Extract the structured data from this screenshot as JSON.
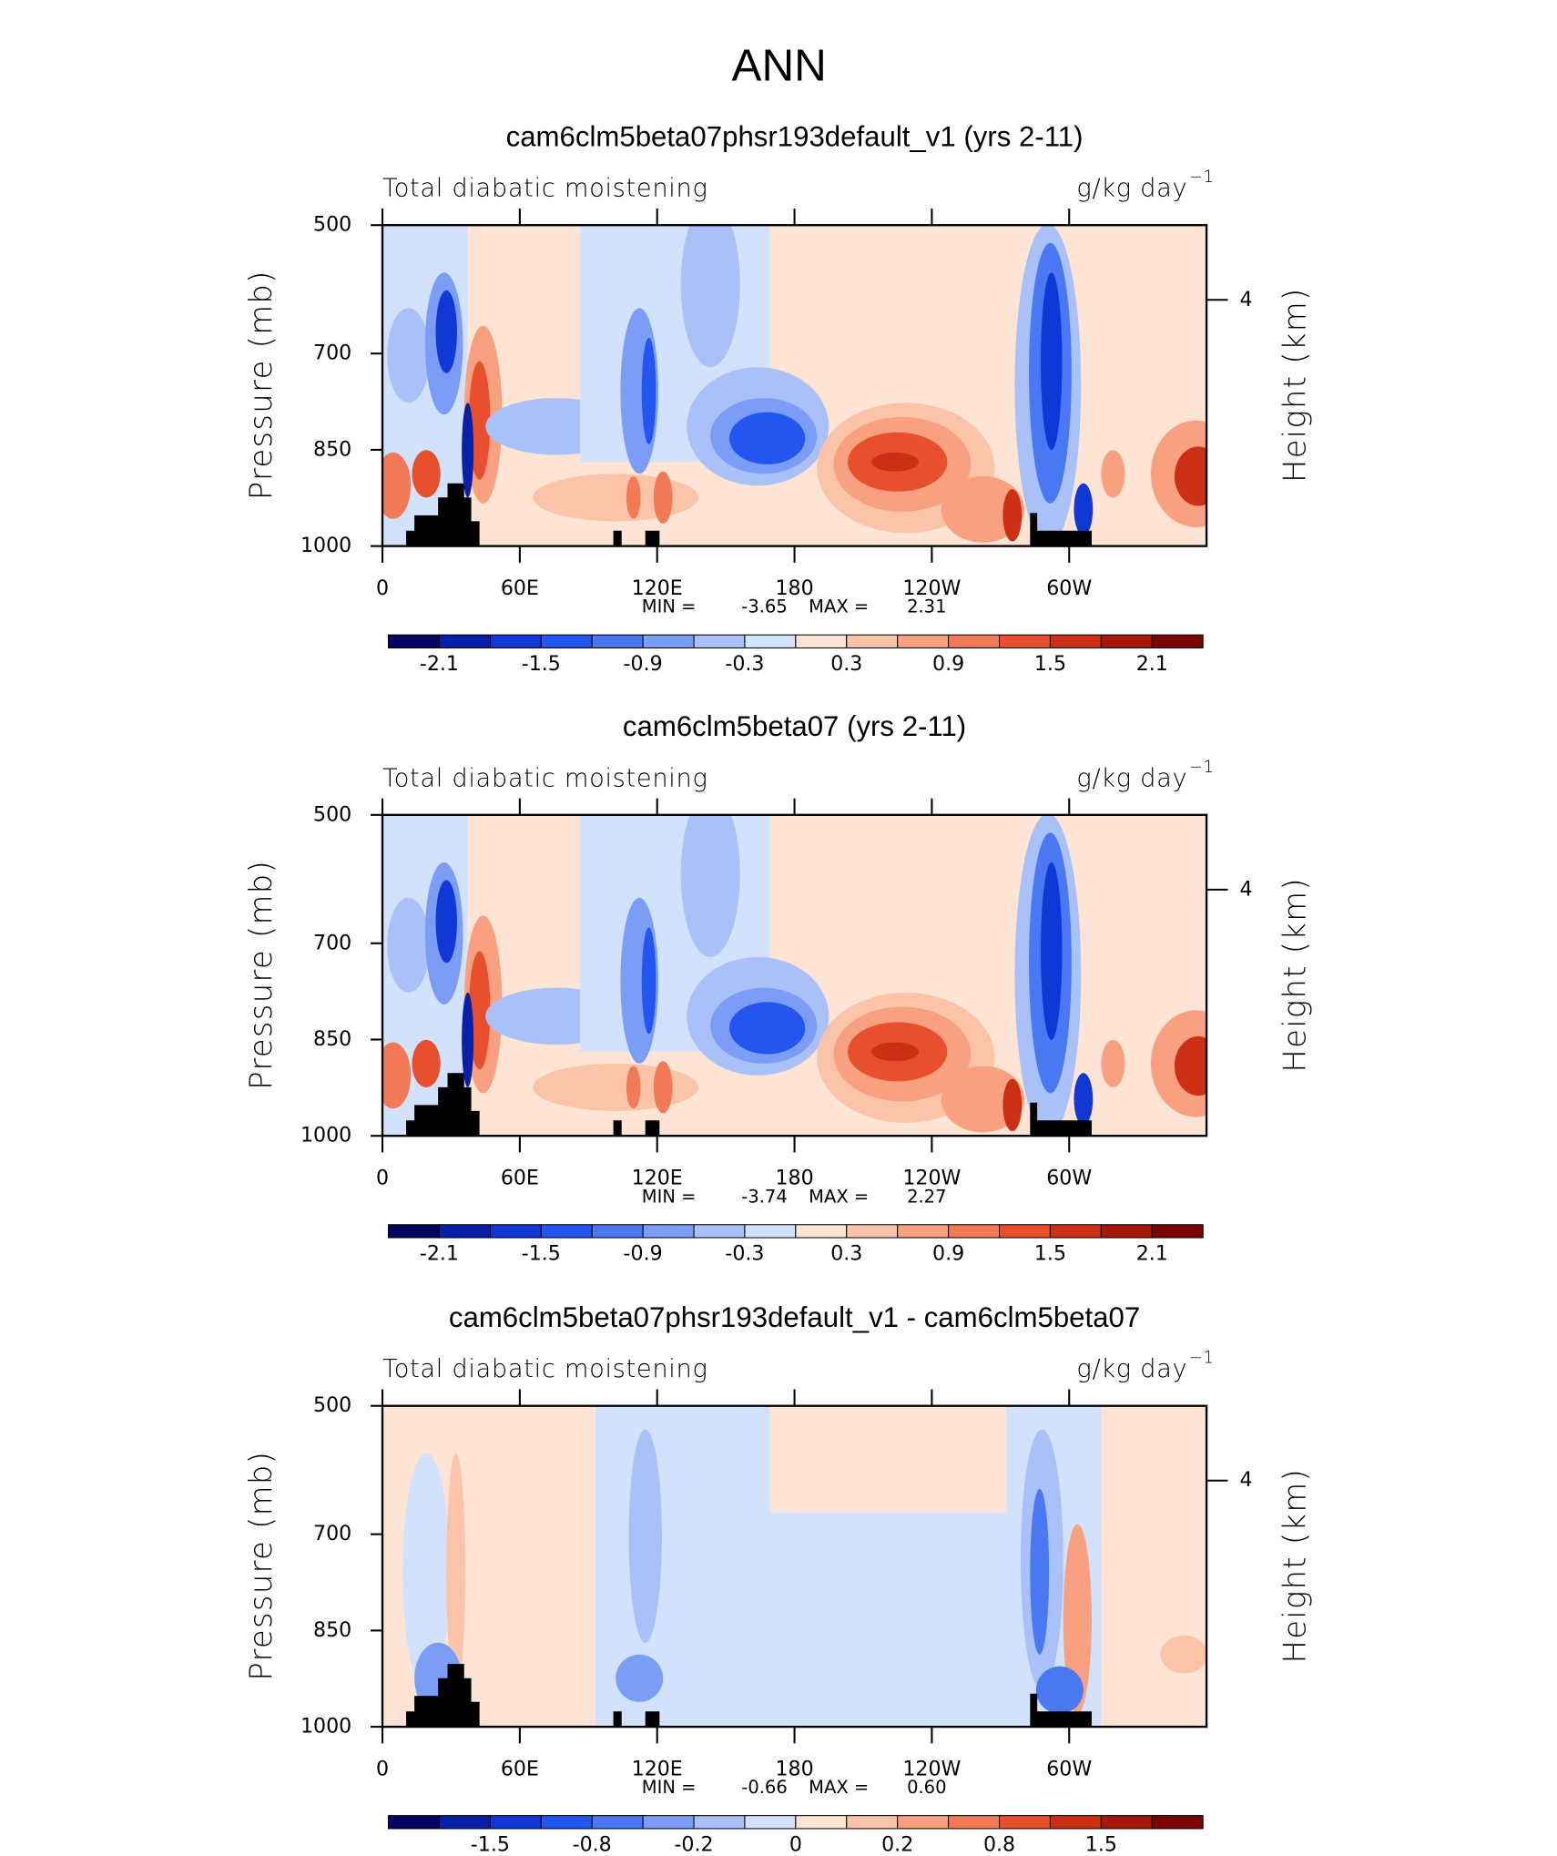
{
  "suptitle": "ANN",
  "chart_data": [
    {
      "type": "contour",
      "title": "cam6clm5beta07phsr193default_v1 (yrs 2-11)",
      "left_string": "Total diabatic moistening",
      "right_string": "g/kg day",
      "right_string_sup": "−1",
      "ylabel": "Pressure (mb)",
      "y2label": "Height (km)",
      "ylim": [
        1000,
        500
      ],
      "yticks": [
        500,
        700,
        850,
        1000
      ],
      "y2ticks": [
        4
      ],
      "xlim": [
        0,
        360
      ],
      "xticks": [
        0,
        {
          "value": 60,
          "label": "60E"
        },
        {
          "value": 120,
          "label": "120E"
        },
        180,
        {
          "value": 240,
          "label": "120W"
        },
        {
          "value": 300,
          "label": "60W"
        }
      ],
      "min_label": "MIN =",
      "min": -3.65,
      "max_label": "MAX =",
      "max": 2.31,
      "colorbar": {
        "colors": [
          "#040460",
          "#0820a8",
          "#1038d6",
          "#2356ef",
          "#4a78f2",
          "#7c9df5",
          "#a9c0f8",
          "#d3e2fc",
          "#fde4d4",
          "#fbc4a9",
          "#f8a07f",
          "#f27a57",
          "#e84f2c",
          "#cc3014",
          "#a8180a",
          "#7a0404"
        ],
        "labels": [
          -2.1,
          -1.5,
          -0.9,
          -0.3,
          0.3,
          0.9,
          1.5,
          2.1
        ]
      }
    },
    {
      "type": "contour",
      "title": "cam6clm5beta07 (yrs 2-11)",
      "left_string": "Total diabatic moistening",
      "right_string": "g/kg day",
      "right_string_sup": "−1",
      "ylabel": "Pressure (mb)",
      "y2label": "Height (km)",
      "ylim": [
        1000,
        500
      ],
      "yticks": [
        500,
        700,
        850,
        1000
      ],
      "y2ticks": [
        4
      ],
      "xlim": [
        0,
        360
      ],
      "xticks": [
        0,
        {
          "value": 60,
          "label": "60E"
        },
        {
          "value": 120,
          "label": "120E"
        },
        180,
        {
          "value": 240,
          "label": "120W"
        },
        {
          "value": 300,
          "label": "60W"
        }
      ],
      "min_label": "MIN =",
      "min": -3.74,
      "max_label": "MAX =",
      "max": 2.27,
      "colorbar": {
        "colors": [
          "#040460",
          "#0820a8",
          "#1038d6",
          "#2356ef",
          "#4a78f2",
          "#7c9df5",
          "#a9c0f8",
          "#d3e2fc",
          "#fde4d4",
          "#fbc4a9",
          "#f8a07f",
          "#f27a57",
          "#e84f2c",
          "#cc3014",
          "#a8180a",
          "#7a0404"
        ],
        "labels": [
          -2.1,
          -1.5,
          -0.9,
          -0.3,
          0.3,
          0.9,
          1.5,
          2.1
        ]
      }
    },
    {
      "type": "contour",
      "title": "cam6clm5beta07phsr193default_v1 - cam6clm5beta07",
      "left_string": "Total diabatic moistening",
      "right_string": "g/kg day",
      "right_string_sup": "−1",
      "ylabel": "Pressure (mb)",
      "y2label": "Height (km)",
      "ylim": [
        1000,
        500
      ],
      "yticks": [
        500,
        700,
        850,
        1000
      ],
      "y2ticks": [
        4
      ],
      "xlim": [
        0,
        360
      ],
      "xticks": [
        0,
        {
          "value": 60,
          "label": "60E"
        },
        {
          "value": 120,
          "label": "120E"
        },
        180,
        {
          "value": 240,
          "label": "120W"
        },
        {
          "value": 300,
          "label": "60W"
        }
      ],
      "min_label": "MIN =",
      "min": -0.66,
      "max_label": "MAX =",
      "max": {
        "value": 0.6,
        "label": "0.60"
      },
      "colorbar": {
        "colors": [
          "#040460",
          "#0820a8",
          "#1038d6",
          "#2356ef",
          "#4a78f2",
          "#7c9df5",
          "#a9c0f8",
          "#d3e2fc",
          "#fde4d4",
          "#fbc4a9",
          "#f8a07f",
          "#f27a57",
          "#e84f2c",
          "#cc3014",
          "#a8180a",
          "#7a0404"
        ],
        "labels": [
          -1.5,
          -0.8,
          -0.2,
          0,
          0.2,
          0.8,
          1.5
        ]
      }
    }
  ]
}
